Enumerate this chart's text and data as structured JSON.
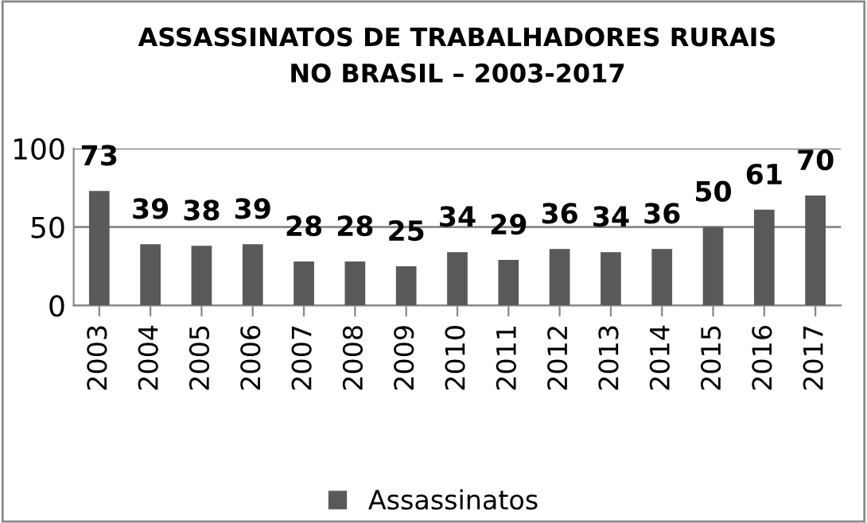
{
  "chart_data": {
    "type": "bar",
    "title": "ASSASSINATOS DE TRABALHADORES RURAIS\nNO BRASIL – 2003-2017",
    "categories": [
      "2003",
      "2004",
      "2005",
      "2006",
      "2007",
      "2008",
      "2009",
      "2010",
      "2011",
      "2012",
      "2013",
      "2014",
      "2015",
      "2016",
      "2017"
    ],
    "series": [
      {
        "name": "Assassinatos",
        "color": "#595959",
        "values": [
          73,
          39,
          38,
          39,
          28,
          28,
          25,
          34,
          29,
          36,
          34,
          36,
          50,
          61,
          70
        ]
      }
    ],
    "ylim": [
      0,
      100
    ],
    "yticks": [
      0,
      50,
      100
    ],
    "grid": "y",
    "legend": "bottom",
    "data_labels": true
  }
}
